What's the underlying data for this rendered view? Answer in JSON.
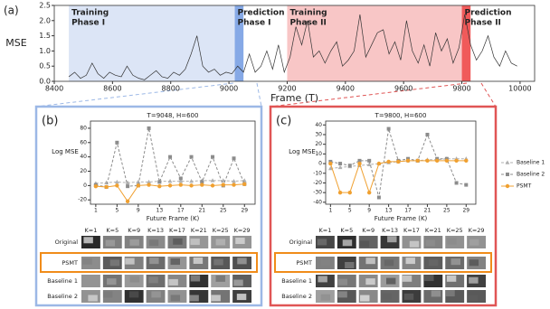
{
  "chart_data": [
    {
      "type": "line",
      "panel": "(a)",
      "xlabel": "Frame (T)",
      "ylabel": "MSE",
      "color": "#333333",
      "xlim": [
        8400,
        10050
      ],
      "ylim": [
        0,
        2.5
      ],
      "xticks": [
        8400,
        8600,
        8800,
        9000,
        9200,
        9400,
        9600,
        9800,
        10000
      ],
      "yticks": [
        {
          "value": 0,
          "label": "0.0"
        },
        0.5,
        {
          "value": 1,
          "label": "1.0"
        },
        1.5,
        {
          "value": 2,
          "label": "2.0"
        },
        2.5
      ],
      "regions": [
        {
          "label": [
            "Training",
            "Phase I"
          ],
          "start": 8450,
          "end": 9020,
          "color": "#dce5f6"
        },
        {
          "label": [
            "Prediction",
            "Phase I"
          ],
          "start": 9020,
          "end": 9050,
          "color": "#86a9e6"
        },
        {
          "label": [
            "Training",
            "Phase II"
          ],
          "start": 9200,
          "end": 9800,
          "color": "#f8c6c6"
        },
        {
          "label": [
            "Prediction",
            "Phase II"
          ],
          "start": 9800,
          "end": 9830,
          "color": "#f05a5a"
        }
      ],
      "x": [
        8450,
        8470,
        8490,
        8510,
        8530,
        8550,
        8570,
        8590,
        8610,
        8630,
        8650,
        8670,
        8690,
        8710,
        8730,
        8750,
        8770,
        8790,
        8810,
        8830,
        8850,
        8870,
        8890,
        8910,
        8930,
        8950,
        8970,
        8990,
        9010,
        9030,
        9050,
        9070,
        9090,
        9110,
        9130,
        9150,
        9170,
        9190,
        9210,
        9230,
        9250,
        9270,
        9290,
        9310,
        9330,
        9350,
        9370,
        9390,
        9410,
        9430,
        9450,
        9470,
        9490,
        9510,
        9530,
        9550,
        9570,
        9590,
        9610,
        9630,
        9650,
        9670,
        9690,
        9710,
        9730,
        9750,
        9770,
        9790,
        9810,
        9830,
        9850,
        9870,
        9890,
        9910,
        9930,
        9950,
        9970,
        9990
      ],
      "values": [
        0.15,
        0.3,
        0.1,
        0.2,
        0.6,
        0.25,
        0.1,
        0.3,
        0.2,
        0.15,
        0.5,
        0.2,
        0.1,
        0.05,
        0.2,
        0.35,
        0.15,
        0.1,
        0.3,
        0.2,
        0.4,
        0.9,
        1.5,
        0.5,
        0.3,
        0.4,
        0.2,
        0.3,
        0.25,
        0.5,
        0.3,
        0.9,
        0.3,
        0.5,
        1.0,
        0.4,
        1.2,
        0.3,
        0.8,
        1.8,
        1.2,
        2.0,
        0.8,
        1.0,
        0.6,
        1.0,
        1.3,
        0.5,
        0.7,
        1.0,
        2.2,
        0.8,
        1.2,
        1.6,
        1.7,
        0.9,
        1.3,
        0.7,
        2.0,
        1.0,
        0.6,
        1.2,
        0.5,
        1.6,
        1.0,
        1.4,
        0.6,
        1.1,
        2.2,
        1.2,
        0.7,
        1.0,
        1.5,
        0.8,
        0.5,
        1.0,
        0.6,
        0.5
      ]
    },
    {
      "type": "line",
      "panel": "(b)",
      "title": "T=9048, H=600",
      "xlabel": "Future Frame (K)",
      "ylabel": "Log MSE",
      "xlim": [
        0,
        31
      ],
      "ylim": [
        -26,
        90
      ],
      "xticks": [
        1,
        5,
        9,
        13,
        17,
        21,
        25,
        29
      ],
      "yticks": [
        -20,
        0,
        20,
        40,
        60,
        80
      ],
      "x": [
        1,
        3,
        5,
        7,
        9,
        11,
        13,
        15,
        17,
        19,
        21,
        23,
        25,
        27,
        29
      ],
      "series": [
        {
          "color": "#b0b0b0",
          "marker": "triangle",
          "values": [
            3,
            4,
            5,
            4,
            5,
            5,
            6,
            6,
            6,
            6,
            7,
            7,
            7,
            6,
            7
          ]
        },
        {
          "color": "#8c8c8c",
          "marker": "square",
          "values": [
            1,
            -2,
            60,
            -1,
            0,
            80,
            5,
            40,
            10,
            40,
            5,
            40,
            0,
            38,
            2
          ]
        },
        {
          "color": "#f0a030",
          "marker": "circle",
          "values": [
            -1,
            -2,
            0,
            -22,
            0,
            1,
            -1,
            0,
            1,
            0,
            1,
            0,
            1,
            1,
            2
          ]
        }
      ]
    },
    {
      "type": "line",
      "panel": "(c)",
      "title": "T=9800, H=600",
      "xlabel": "Future Frame (K)",
      "ylabel": "Log MSE",
      "xlim": [
        0,
        31
      ],
      "ylim": [
        -42,
        44
      ],
      "xticks": [
        1,
        5,
        9,
        13,
        17,
        21,
        25,
        29
      ],
      "yticks": [
        -40,
        -30,
        -20,
        -10,
        0,
        10,
        20,
        30,
        40
      ],
      "legend": "outside-right",
      "x": [
        1,
        3,
        5,
        7,
        9,
        11,
        13,
        15,
        17,
        19,
        21,
        23,
        25,
        27,
        29
      ],
      "series": [
        {
          "name": "Baseline 1",
          "color": "#b0b0b0",
          "marker": "triangle",
          "values": [
            -5,
            -4,
            -3,
            -2,
            -1,
            0,
            1,
            2,
            3,
            3,
            4,
            4,
            5,
            5,
            5
          ]
        },
        {
          "name": "Baseline 2",
          "color": "#8c8c8c",
          "marker": "square",
          "values": [
            2,
            0,
            -2,
            3,
            3,
            -35,
            36,
            3,
            5,
            3,
            30,
            5,
            5,
            -20,
            -22
          ]
        },
        {
          "name": "PSMT",
          "color": "#f0a030",
          "marker": "circle",
          "values": [
            0,
            -30,
            -30,
            0,
            -30,
            0,
            2,
            2,
            3,
            3,
            3,
            3,
            3,
            3,
            3
          ]
        }
      ]
    }
  ],
  "image_grids": [
    {
      "columns": [
        "K=1",
        "K=5",
        "K=9",
        "K=13",
        "K=17",
        "K=21",
        "K=25",
        "K=29"
      ],
      "rows": [
        "Original",
        "PSMT",
        "Baseline 1",
        "Baseline 2"
      ]
    },
    {
      "columns": [
        "K=1",
        "K=5",
        "K=9",
        "K=13",
        "K=17",
        "K=21",
        "K=25",
        "K=29"
      ],
      "rows": [
        "Original",
        "PSMT",
        "Baseline 1",
        "Baseline 2"
      ]
    }
  ]
}
